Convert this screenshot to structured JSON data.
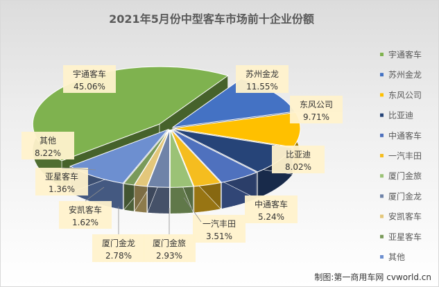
{
  "chart_data": {
    "type": "pie",
    "title": "2021年5月份中型客车市场前十企业份额",
    "categories": [
      "宇通客车",
      "苏州金龙",
      "东风公司",
      "比亚迪",
      "中通客车",
      "一汽丰田",
      "厦门金旅",
      "厦门金龙",
      "安凯客车",
      "亚星客车",
      "其他"
    ],
    "value_labels": [
      "45.06%",
      "11.55%",
      "9.71%",
      "8.02%",
      "5.24%",
      "3.51%",
      "2.93%",
      "2.78%",
      "1.62%",
      "1.36%",
      "8.22%"
    ],
    "values": [
      45.06,
      11.55,
      9.71,
      8.02,
      5.24,
      3.51,
      2.93,
      2.78,
      1.62,
      1.36,
      8.22
    ],
    "colors": [
      "#7fb24f",
      "#4472c4",
      "#ffc000",
      "#264478",
      "#4f71be",
      "#f5bd1f",
      "#9bc276",
      "#6f83a8",
      "#e3c77b",
      "#7a9a5a",
      "#6d8fd0"
    ],
    "legend_position": "right",
    "style": "3d-exploded"
  },
  "credit": "制图:第一商用车网 cvworld.cn"
}
